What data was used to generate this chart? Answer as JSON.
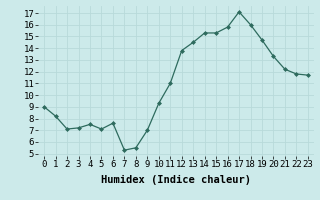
{
  "x": [
    0,
    1,
    2,
    3,
    4,
    5,
    6,
    7,
    8,
    9,
    10,
    11,
    12,
    13,
    14,
    15,
    16,
    17,
    18,
    19,
    20,
    21,
    22,
    23
  ],
  "y": [
    9,
    8.2,
    7.1,
    7.2,
    7.5,
    7.1,
    7.6,
    5.3,
    5.5,
    7.0,
    9.3,
    11.0,
    13.8,
    14.5,
    15.3,
    15.3,
    15.8,
    17.1,
    16.0,
    14.7,
    13.3,
    12.2,
    11.8,
    11.7
  ],
  "line_color": "#2e6b5e",
  "marker": "D",
  "marker_size": 2.0,
  "bg_color": "#cceaea",
  "grid_color": "#aad4d4",
  "xlabel": "Humidex (Indice chaleur)",
  "ylim": [
    4.8,
    17.6
  ],
  "xlim": [
    -0.5,
    23.5
  ],
  "yticks": [
    5,
    6,
    7,
    8,
    9,
    10,
    11,
    12,
    13,
    14,
    15,
    16,
    17
  ],
  "xticks": [
    0,
    1,
    2,
    3,
    4,
    5,
    6,
    7,
    8,
    9,
    10,
    11,
    12,
    13,
    14,
    15,
    16,
    17,
    18,
    19,
    20,
    21,
    22,
    23
  ],
  "tick_fontsize": 6.5,
  "xlabel_fontsize": 7.5
}
